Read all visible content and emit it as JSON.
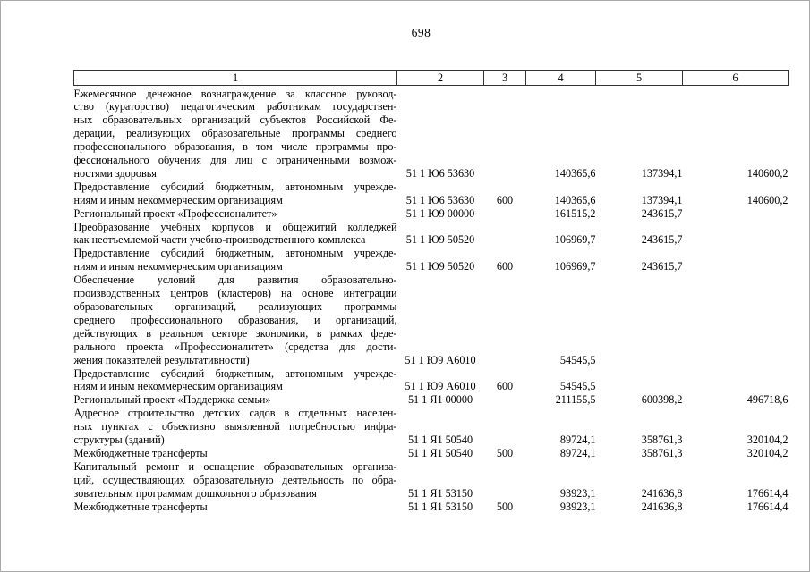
{
  "page": {
    "number": "698"
  },
  "table": {
    "header": [
      "1",
      "2",
      "3",
      "4",
      "5",
      "6"
    ],
    "rows": [
      {
        "name": "Ежемесячное денежное вознаграждение за классное руковод-\nство (кураторство) педагогическим работникам государствен-\nных образовательных организаций субъектов Российской Фе-\nдерации, реализующих образовательные программы среднего\nпрофессионального образования, в том числе программы про-\nфессионального обучения для лиц с ограниченными возмож-\nностями здоровья",
        "code": "51 1 Ю6 53630",
        "vr": "",
        "col4": "140365,6",
        "col5": "137394,1",
        "col6": "140600,2"
      },
      {
        "name": "Предоставление субсидий бюджетным, автономным учрежде-\nниям и иным некоммерческим организациям",
        "code": "51 1 Ю6 53630",
        "vr": "600",
        "col4": "140365,6",
        "col5": "137394,1",
        "col6": "140600,2"
      },
      {
        "name": "Региональный проект «Профессионалитет»",
        "code": "51 1 Ю9 00000",
        "vr": "",
        "col4": "161515,2",
        "col5": "243615,7",
        "col6": ""
      },
      {
        "name": "Преобразование учебных корпусов и общежитий колледжей\nкак неотъемлемой части учебно-производственного комплекса",
        "code": "51 1 Ю9 50520",
        "vr": "",
        "col4": "106969,7",
        "col5": "243615,7",
        "col6": ""
      },
      {
        "name": "Предоставление субсидий бюджетным, автономным учрежде-\nниям и иным некоммерческим организациям",
        "code": "51 1 Ю9 50520",
        "vr": "600",
        "col4": "106969,7",
        "col5": "243615,7",
        "col6": ""
      },
      {
        "name": "Обеспечение условий для развития образовательно-\nпроизводственных центров (кластеров) на основе интеграции\nобразовательных организаций, реализующих программы\nсреднего профессионального образования, и организаций,\nдействующих в реальном секторе экономики, в рамках феде-\nрального проекта «Профессионалитет» (средства для дости-\nжения показателей результативности)",
        "code": "51 1 Ю9 А6010",
        "vr": "",
        "col4": "54545,5",
        "col5": "",
        "col6": ""
      },
      {
        "name": "Предоставление субсидий бюджетным, автономным учрежде-\nниям и иным некоммерческим организациям",
        "code": "51 1 Ю9 А6010",
        "vr": "600",
        "col4": "54545,5",
        "col5": "",
        "col6": ""
      },
      {
        "name": "Региональный проект «Поддержка семьи»",
        "code": "51 1 Я1 00000",
        "vr": "",
        "col4": "211155,5",
        "col5": "600398,2",
        "col6": "496718,6"
      },
      {
        "name": "Адресное строительство детских садов в отдельных населен-\nных пунктах с объективно выявленной потребностью инфра-\nструктуры (зданий)",
        "code": "51 1 Я1 50540",
        "vr": "",
        "col4": "89724,1",
        "col5": "358761,3",
        "col6": "320104,2"
      },
      {
        "name": "Межбюджетные трансферты",
        "code": "51 1 Я1 50540",
        "vr": "500",
        "col4": "89724,1",
        "col5": "358761,3",
        "col6": "320104,2"
      },
      {
        "name": "Капитальный ремонт и оснащение образовательных организа-\nций, осуществляющих образовательную деятельность по обра-\nзовательным программам дошкольного образования",
        "code": "51 1 Я1 53150",
        "vr": "",
        "col4": "93923,1",
        "col5": "241636,8",
        "col6": "176614,4"
      },
      {
        "name": "Межбюджетные трансферты",
        "code": "51 1 Я1 53150",
        "vr": "500",
        "col4": "93923,1",
        "col5": "241636,8",
        "col6": "176614,4"
      }
    ]
  }
}
